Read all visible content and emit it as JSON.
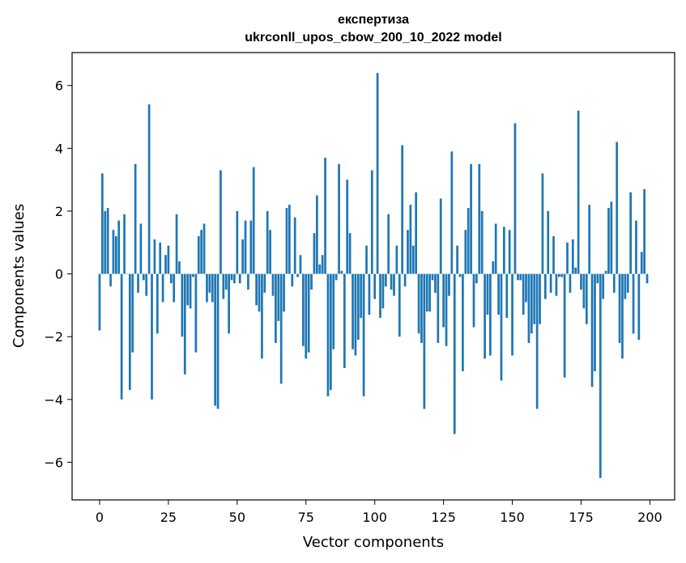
{
  "chart_data": {
    "type": "bar",
    "title": "експертиза",
    "subtitle": "ukrconll_upos_cbow_200_10_2022 model",
    "xlabel": "Vector components",
    "ylabel": "Components values",
    "xlim": [
      -10,
      209
    ],
    "ylim": [
      -7.2,
      7.05
    ],
    "xticks": [
      0,
      25,
      50,
      75,
      100,
      125,
      150,
      175,
      200
    ],
    "yticks": [
      -6,
      -4,
      -2,
      0,
      2,
      4,
      6
    ],
    "xtick_labels": [
      "0",
      "25",
      "50",
      "75",
      "100",
      "125",
      "150",
      "175",
      "200"
    ],
    "ytick_labels": [
      "−6",
      "−4",
      "−2",
      "0",
      "2",
      "4",
      "6"
    ],
    "bar_color": "#1f77b4",
    "grid": false,
    "x": [
      0,
      1,
      2,
      3,
      4,
      5,
      6,
      7,
      8,
      9,
      10,
      11,
      12,
      13,
      14,
      15,
      16,
      17,
      18,
      19,
      20,
      21,
      22,
      23,
      24,
      25,
      26,
      27,
      28,
      29,
      30,
      31,
      32,
      33,
      34,
      35,
      36,
      37,
      38,
      39,
      40,
      41,
      42,
      43,
      44,
      45,
      46,
      47,
      48,
      49,
      50,
      51,
      52,
      53,
      54,
      55,
      56,
      57,
      58,
      59,
      60,
      61,
      62,
      63,
      64,
      65,
      66,
      67,
      68,
      69,
      70,
      71,
      72,
      73,
      74,
      75,
      76,
      77,
      78,
      79,
      80,
      81,
      82,
      83,
      84,
      85,
      86,
      87,
      88,
      89,
      90,
      91,
      92,
      93,
      94,
      95,
      96,
      97,
      98,
      99,
      100,
      101,
      102,
      103,
      104,
      105,
      106,
      107,
      108,
      109,
      110,
      111,
      112,
      113,
      114,
      115,
      116,
      117,
      118,
      119,
      120,
      121,
      122,
      123,
      124,
      125,
      126,
      127,
      128,
      129,
      130,
      131,
      132,
      133,
      134,
      135,
      136,
      137,
      138,
      139,
      140,
      141,
      142,
      143,
      144,
      145,
      146,
      147,
      148,
      149,
      150,
      151,
      152,
      153,
      154,
      155,
      156,
      157,
      158,
      159,
      160,
      161,
      162,
      163,
      164,
      165,
      166,
      167,
      168,
      169,
      170,
      171,
      172,
      173,
      174,
      175,
      176,
      177,
      178,
      179,
      180,
      181,
      182,
      183,
      184,
      185,
      186,
      187,
      188,
      189,
      190,
      191,
      192,
      193,
      194,
      195,
      196,
      197,
      198,
      199
    ],
    "values": [
      -1.8,
      3.2,
      2.0,
      2.1,
      -0.4,
      1.4,
      1.2,
      1.7,
      -4.0,
      1.9,
      0.0,
      -3.7,
      -2.5,
      3.5,
      -0.6,
      1.6,
      -0.2,
      -0.7,
      5.4,
      -4.0,
      1.1,
      -1.9,
      1.0,
      -0.9,
      0.6,
      0.9,
      -0.3,
      -0.9,
      1.9,
      0.4,
      -2.0,
      -3.2,
      -1.0,
      -1.1,
      -0.1,
      -2.5,
      1.2,
      1.4,
      1.6,
      -0.9,
      -0.6,
      -0.9,
      -4.2,
      -4.3,
      3.3,
      -0.8,
      -0.5,
      -1.9,
      -0.2,
      -0.3,
      2.0,
      -0.3,
      1.1,
      1.7,
      -0.5,
      1.7,
      3.4,
      -1.0,
      -1.2,
      -2.7,
      -0.6,
      2.0,
      1.4,
      -0.7,
      -2.2,
      -1.5,
      -3.5,
      -1.2,
      2.1,
      2.2,
      -0.4,
      1.8,
      -0.1,
      0.6,
      -2.3,
      -2.7,
      -2.5,
      -0.5,
      1.3,
      2.5,
      0.3,
      0.6,
      3.7,
      -3.9,
      -3.7,
      -2.4,
      -0.2,
      3.5,
      0.1,
      -3.0,
      3.0,
      1.3,
      -2.4,
      -2.6,
      -2.1,
      -1.4,
      -3.9,
      0.9,
      -1.3,
      3.3,
      -0.8,
      6.4,
      -1.4,
      -1.1,
      -0.4,
      1.9,
      -0.5,
      -0.7,
      0.9,
      -2.0,
      4.1,
      -0.4,
      1.4,
      2.2,
      0.9,
      2.6,
      -1.9,
      -2.2,
      -4.3,
      -1.2,
      -1.2,
      -0.2,
      -0.6,
      -2.2,
      2.4,
      -1.7,
      -2.3,
      -0.7,
      3.9,
      -5.1,
      0.9,
      -0.1,
      -3.1,
      1.4,
      2.1,
      3.5,
      -1.7,
      -0.3,
      3.5,
      2.0,
      -2.7,
      -1.3,
      -2.6,
      0.4,
      1.6,
      -1.3,
      -3.4,
      1.5,
      -1.4,
      1.4,
      -2.6,
      4.8,
      -0.2,
      -0.2,
      -1.3,
      -0.9,
      -2.2,
      -1.9,
      -1.6,
      -4.3,
      -1.6,
      3.2,
      -0.8,
      2.0,
      -0.6,
      1.2,
      -0.7,
      -0.1,
      -0.1,
      -3.3,
      1.0,
      -0.6,
      1.1,
      0.2,
      5.2,
      -0.5,
      -1.1,
      -1.6,
      2.2,
      -3.6,
      -3.1,
      -0.3,
      -6.5,
      -0.8,
      0.1,
      2.1,
      2.3,
      -0.6,
      4.2,
      -2.2,
      -2.7,
      -0.8,
      -0.6,
      2.6,
      -1.9,
      1.7,
      -2.1,
      0.7,
      2.7,
      -0.3
    ]
  }
}
